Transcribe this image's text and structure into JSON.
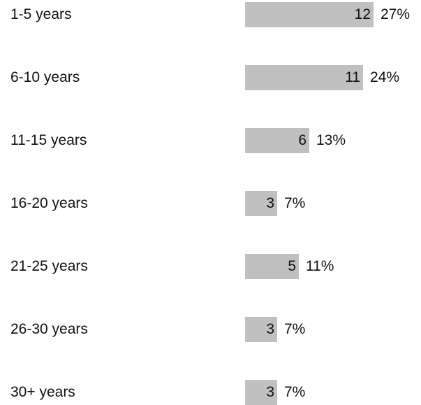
{
  "chart_data": {
    "type": "bar",
    "orientation": "horizontal",
    "categories": [
      "1-5 years",
      "6-10 years",
      "11-15 years",
      "16-20 years",
      "21-25 years",
      "26-30 years",
      "30+ years"
    ],
    "values": [
      12,
      11,
      6,
      3,
      5,
      3,
      3
    ],
    "percent_labels": [
      "27%",
      "24%",
      "13%",
      "7%",
      "11%",
      "7%",
      "7%"
    ],
    "bar_color": "#c0c0c0",
    "xlabel": "",
    "ylabel": "",
    "grid": false,
    "legend": "none"
  }
}
